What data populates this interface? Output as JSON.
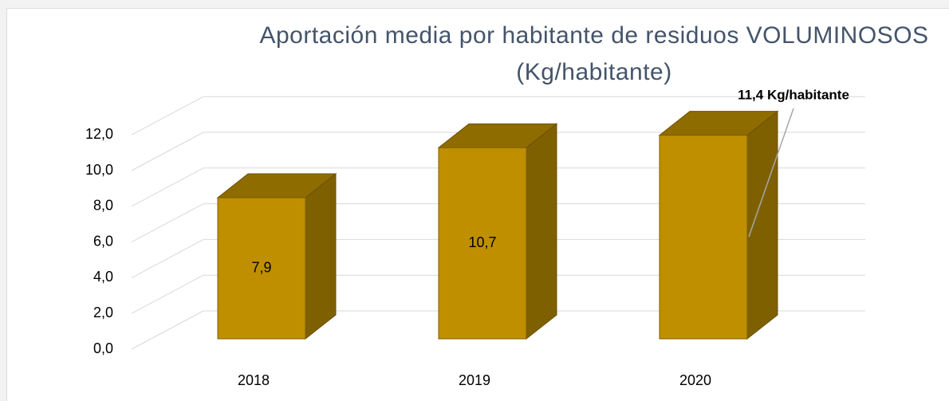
{
  "chart_data": {
    "type": "bar3d",
    "title": "Aportación media por habitante de residuos VOLUMINOSOS (Kg/habitante)",
    "categories": [
      "2018",
      "2019",
      "2020"
    ],
    "values": [
      7.9,
      10.7,
      11.4
    ],
    "value_labels": [
      "7,9",
      "10,7",
      "11,4 Kg/habitante"
    ],
    "color": "#bf8f00",
    "ylim": [
      0,
      12
    ],
    "yticks": [
      {
        "value": 0,
        "label": "0,0"
      },
      {
        "value": 2,
        "label": "2,0"
      },
      {
        "value": 4,
        "label": "4,0"
      },
      {
        "value": 6,
        "label": "6,0"
      },
      {
        "value": 8,
        "label": "8,0"
      },
      {
        "value": 10,
        "label": "10,0"
      },
      {
        "value": 12,
        "label": "12,0"
      }
    ],
    "grid": true
  }
}
